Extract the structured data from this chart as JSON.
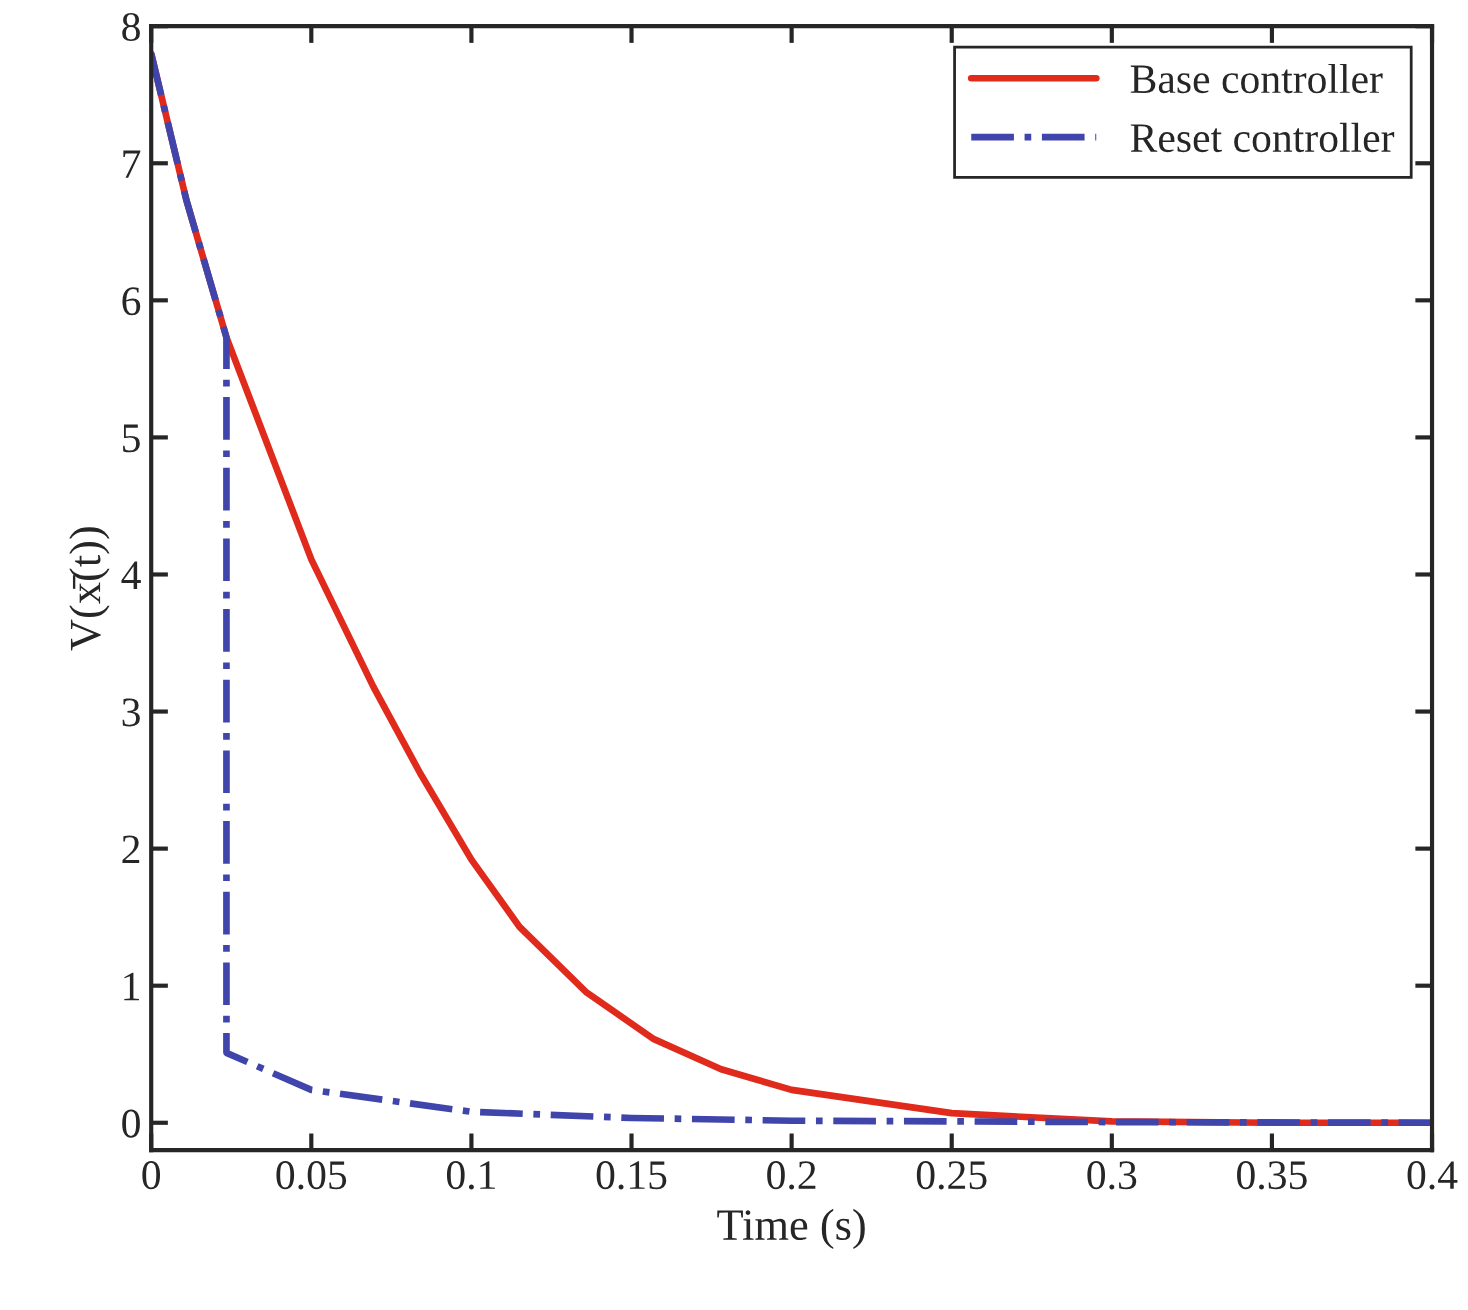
{
  "chart_data": {
    "type": "line",
    "xlabel": "Time (s)",
    "ylabel": "V(x̄(t))",
    "xlim": [
      0,
      0.4
    ],
    "xticks": [
      0,
      0.05,
      0.1,
      0.15,
      0.2,
      0.25,
      0.3,
      0.35,
      0.4
    ],
    "ylim": [
      -0.2,
      8
    ],
    "yticks": [
      0,
      1,
      2,
      3,
      4,
      5,
      6,
      7,
      8
    ],
    "grid": false,
    "legend": "top right",
    "marker": "none",
    "series": [
      {
        "name": "Base controller",
        "color": "#e02a1c",
        "line_style": "solid",
        "x": [
          0,
          0.011,
          0.0235,
          0.05,
          0.0694,
          0.084,
          0.1,
          0.115,
          0.136,
          0.157,
          0.178,
          0.2,
          0.25,
          0.3,
          0.35,
          0.4
        ],
        "values": [
          7.8,
          6.73,
          5.73,
          4.11,
          3.18,
          2.55,
          1.92,
          1.43,
          0.95,
          0.61,
          0.39,
          0.24,
          0.07,
          0.01,
          0.0,
          0.0
        ]
      },
      {
        "name": "Reset controller",
        "color": "#4045ab",
        "line_style": "dashdot",
        "x": [
          0,
          0.011,
          0.0235,
          0.0235,
          0.05,
          0.1,
          0.15,
          0.2,
          0.3,
          0.4
        ],
        "values": [
          7.8,
          6.73,
          5.73,
          0.51,
          0.24,
          0.08,
          0.035,
          0.015,
          0.005,
          0.0
        ]
      }
    ]
  }
}
